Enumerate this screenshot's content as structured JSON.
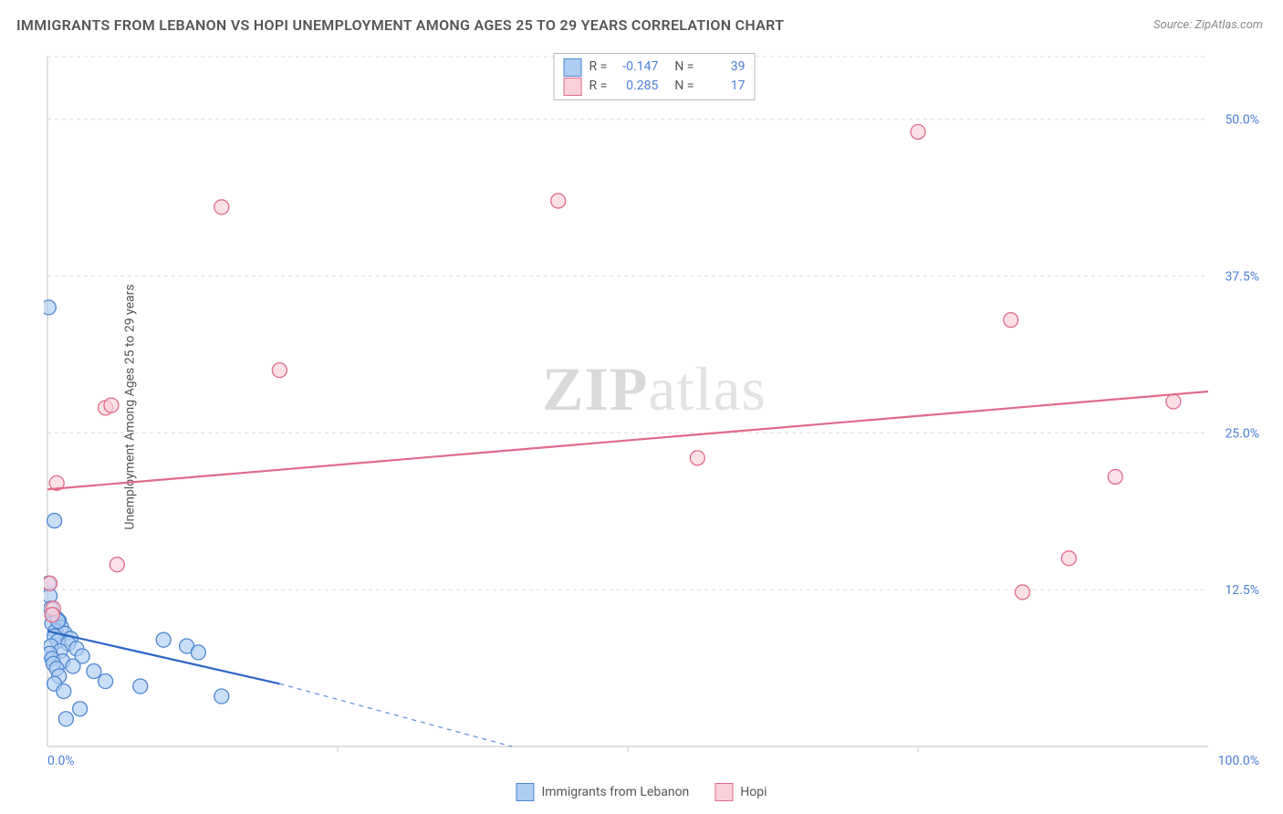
{
  "title": "IMMIGRANTS FROM LEBANON VS HOPI UNEMPLOYMENT AMONG AGES 25 TO 29 YEARS CORRELATION CHART",
  "source": "Source: ZipAtlas.com",
  "ylabel": "Unemployment Among Ages 25 to 29 years",
  "watermark_a": "ZIP",
  "watermark_b": "atlas",
  "chart": {
    "type": "scatter",
    "xlim": [
      0,
      100
    ],
    "ylim": [
      0,
      55
    ],
    "xticks": [
      {
        "v": 0,
        "label": "0.0%"
      },
      {
        "v": 100,
        "label": "100.0%"
      }
    ],
    "yticks": [
      {
        "v": 12.5,
        "label": "12.5%"
      },
      {
        "v": 25.0,
        "label": "25.0%"
      },
      {
        "v": 37.5,
        "label": "37.5%"
      },
      {
        "v": 50.0,
        "label": "50.0%"
      }
    ],
    "xgrid_minor": [
      25,
      50,
      75
    ],
    "background": "#ffffff",
    "grid_color": "#dddddd",
    "axis_color": "#cccccc",
    "tick_label_color": "#4a7fd6",
    "marker_radius": 8,
    "marker_stroke_width": 1.3,
    "line_width": 2.2,
    "series": [
      {
        "name": "Immigrants from Lebanon",
        "fill": "#aecdf2",
        "stroke": "#4e86d0",
        "line_color": "#2e66c8",
        "R": "-0.147",
        "N": "39",
        "points": [
          [
            0.1,
            35
          ],
          [
            0.6,
            18
          ],
          [
            0.1,
            13
          ],
          [
            0.2,
            12
          ],
          [
            0.3,
            11
          ],
          [
            0.5,
            10.5
          ],
          [
            0.8,
            10.2
          ],
          [
            1.0,
            10
          ],
          [
            0.4,
            9.8
          ],
          [
            1.2,
            9.5
          ],
          [
            0.7,
            9.2
          ],
          [
            1.5,
            9.0
          ],
          [
            0.6,
            8.8
          ],
          [
            2.0,
            8.6
          ],
          [
            0.9,
            8.4
          ],
          [
            1.8,
            8.2
          ],
          [
            0.3,
            8.0
          ],
          [
            2.5,
            7.8
          ],
          [
            1.1,
            7.6
          ],
          [
            0.2,
            7.4
          ],
          [
            3.0,
            7.2
          ],
          [
            0.4,
            7.0
          ],
          [
            1.3,
            6.8
          ],
          [
            0.5,
            6.6
          ],
          [
            2.2,
            6.4
          ],
          [
            0.8,
            6.2
          ],
          [
            4.0,
            6.0
          ],
          [
            1.0,
            5.6
          ],
          [
            5.0,
            5.2
          ],
          [
            0.6,
            5.0
          ],
          [
            8.0,
            4.8
          ],
          [
            1.4,
            4.4
          ],
          [
            10.0,
            8.5
          ],
          [
            12.0,
            8.0
          ],
          [
            13.0,
            7.5
          ],
          [
            15.0,
            4.0
          ],
          [
            2.8,
            3.0
          ],
          [
            1.6,
            2.2
          ],
          [
            0.9,
            10.0
          ]
        ],
        "trend": {
          "x1": 0,
          "y1": 9.2,
          "x2": 20,
          "y2": 5.0,
          "dash_x2": 40,
          "dash_y2": 0
        }
      },
      {
        "name": "Hopi",
        "fill": "#f9d0da",
        "stroke": "#e06a8a",
        "line_color": "#e06a8a",
        "R": "0.285",
        "N": "17",
        "points": [
          [
            0.2,
            13
          ],
          [
            0.5,
            11
          ],
          [
            0.4,
            10.5
          ],
          [
            0.8,
            21
          ],
          [
            5,
            27
          ],
          [
            5.5,
            27.2
          ],
          [
            6,
            14.5
          ],
          [
            15,
            43
          ],
          [
            20,
            30
          ],
          [
            44,
            43.5
          ],
          [
            56,
            23
          ],
          [
            75,
            49
          ],
          [
            83,
            34
          ],
          [
            84,
            12.3
          ],
          [
            88,
            15
          ],
          [
            92,
            21.5
          ],
          [
            97,
            27.5
          ]
        ],
        "trend": {
          "x1": 0,
          "y1": 20.5,
          "x2": 100,
          "y2": 28.3
        }
      }
    ],
    "legend_rbox": {
      "R_label": "R =",
      "N_label": "N ="
    }
  }
}
